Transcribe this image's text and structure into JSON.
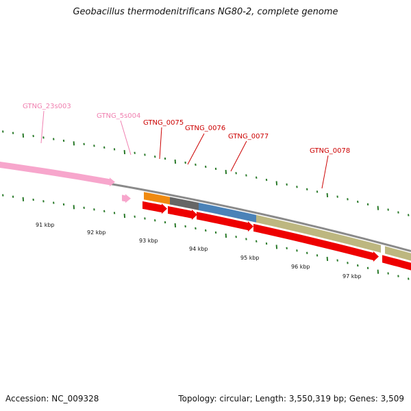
{
  "title": "Geobacillus thermodenitrificans NG80-2, complete genome",
  "accession": "Accession: NC_009328",
  "summary": "Topology: circular; Length: 3,550,319 bp; Genes: 3,509",
  "colors": {
    "rna_label": "#f080b0",
    "gene_label": "#cc0000",
    "rna_feature": "#f7a6cc",
    "cds_feature": "#ee0000",
    "backbone": "#8a8a8a",
    "tick": "#2a7a2a",
    "segment_orange": "#f08a10",
    "segment_gray": "#666666",
    "segment_blue": "#4a82b8",
    "segment_olive": "#bdb780"
  },
  "gene_labels": [
    {
      "id": "23s003",
      "text": "GTNG_23s003",
      "kind": "rna"
    },
    {
      "id": "5s004",
      "text": "GTNG_5s004",
      "kind": "rna"
    },
    {
      "id": "0075",
      "text": "GTNG_0075",
      "kind": "cds"
    },
    {
      "id": "0076",
      "text": "GTNG_0076",
      "kind": "cds"
    },
    {
      "id": "0077",
      "text": "GTNG_0077",
      "kind": "cds"
    },
    {
      "id": "0078",
      "text": "GTNG_0078",
      "kind": "cds"
    }
  ],
  "scale_labels": [
    "91 kbp",
    "92 kbp",
    "93 kbp",
    "94 kbp",
    "95 kbp",
    "96 kbp",
    "97 kbp"
  ]
}
